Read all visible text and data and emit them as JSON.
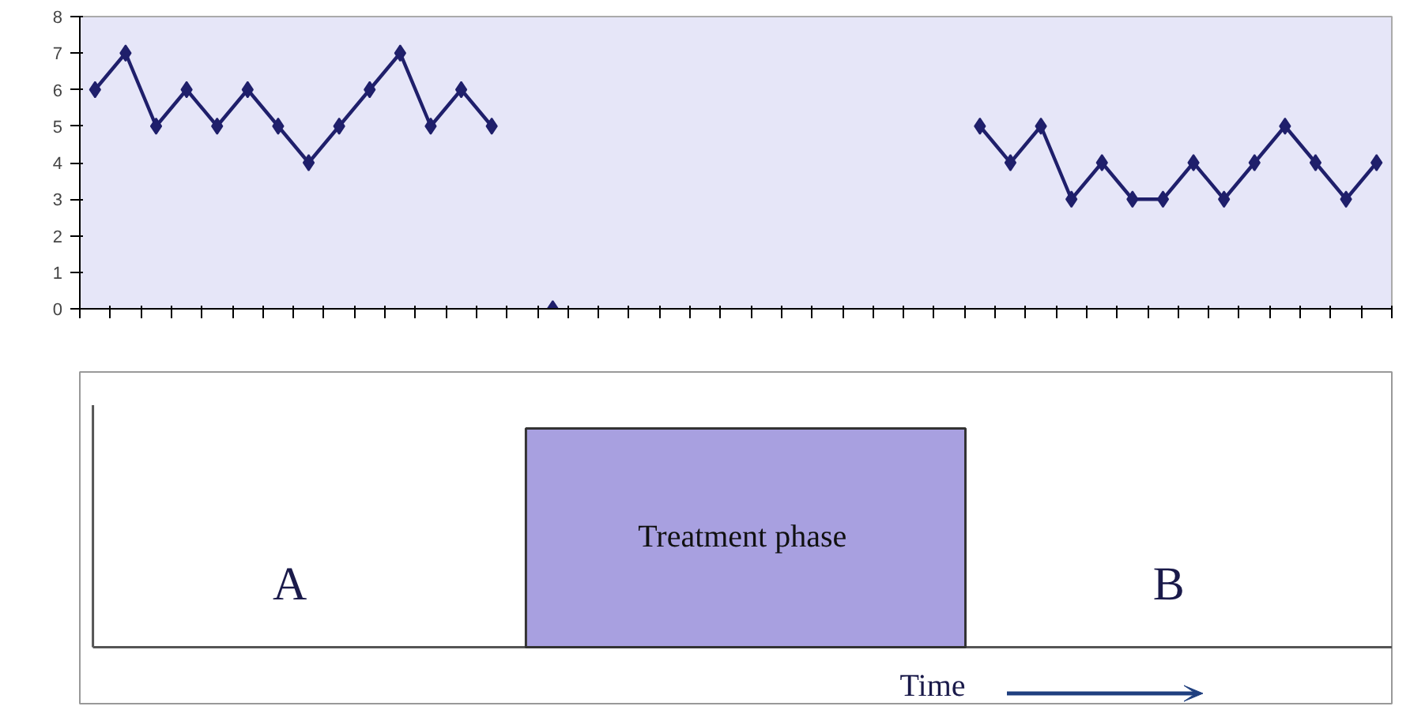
{
  "chart_data": [
    {
      "type": "line",
      "categories": [
        null,
        null,
        null,
        null,
        null,
        null,
        null,
        null,
        null,
        null,
        null,
        null,
        null,
        null,
        null,
        null,
        null,
        null,
        null,
        null,
        null,
        null,
        null,
        null,
        null,
        null,
        null,
        null,
        null,
        null,
        null,
        null,
        null,
        null,
        null,
        null,
        null,
        null,
        null,
        null,
        null,
        null,
        null
      ],
      "series": [
        {
          "color": "#1f1f6b",
          "values": [
            6,
            7,
            5,
            6,
            5,
            6,
            5,
            4,
            5,
            6,
            7,
            5,
            6,
            5,
            null,
            0,
            null,
            null,
            null,
            null,
            null,
            null,
            null,
            null,
            null,
            null,
            null,
            null,
            null,
            5,
            4,
            5,
            3,
            4,
            3,
            3,
            4,
            3,
            4,
            5,
            4,
            3,
            4
          ]
        }
      ],
      "ylim": [
        0,
        8
      ],
      "yticks": [
        0,
        1,
        2,
        3,
        4,
        5,
        6,
        7,
        8
      ],
      "grid": false,
      "marker": "diamond",
      "line_style": "solid"
    },
    {
      "type": "other",
      "annotations": [
        "A",
        "Treatment phase",
        "B",
        "Time"
      ]
    }
  ]
}
